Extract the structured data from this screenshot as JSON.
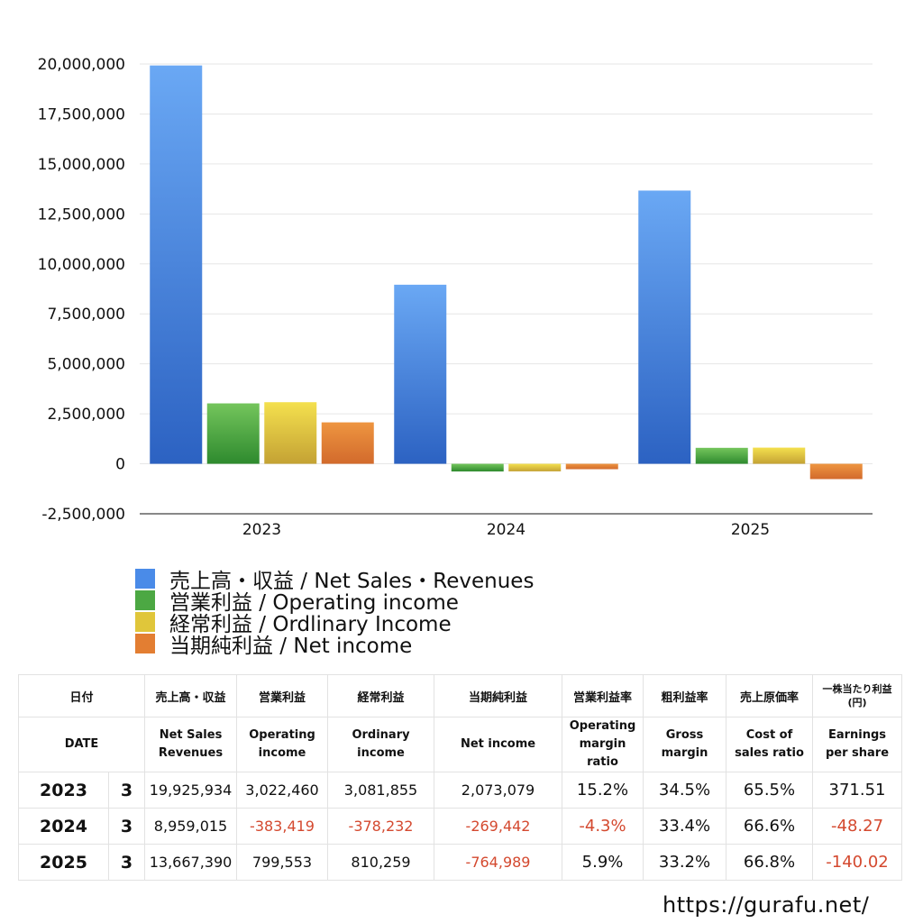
{
  "chart_data": {
    "type": "bar",
    "categories": [
      "2023",
      "2024",
      "2025"
    ],
    "series": [
      {
        "name": "売上高・収益 / Net Sales・Revenues",
        "color": "#4a8be8",
        "color_light": "#6aa8f4",
        "color_dark": "#2c62c2",
        "values": [
          19925934,
          8959015,
          13667390
        ]
      },
      {
        "name": "営業利益 / Operating income",
        "color": "#4ca843",
        "color_light": "#74c55c",
        "color_dark": "#2e8a2e",
        "values": [
          3022460,
          -383419,
          799553
        ]
      },
      {
        "name": "経常利益 / Ordlinary Income",
        "color": "#e0c63a",
        "color_light": "#f4e04e",
        "color_dark": "#c4a234",
        "values": [
          3081855,
          -378232,
          810259
        ]
      },
      {
        "name": "当期純利益 / Net income",
        "color": "#e37e32",
        "color_light": "#ee9540",
        "color_dark": "#d26a2c",
        "values": [
          2073079,
          -269442,
          -764989
        ]
      }
    ],
    "ylim": [
      -2500000,
      20000000
    ],
    "yticks": [
      20000000,
      17500000,
      15000000,
      12500000,
      10000000,
      7500000,
      5000000,
      2500000,
      0,
      -2500000
    ],
    "ytick_labels": [
      "20,000,000",
      "17,500,000",
      "15,000,000",
      "12,500,000",
      "10,000,000",
      "7,500,000",
      "5,000,000",
      "2,500,000",
      "0",
      "-2,500,000"
    ],
    "grid": true,
    "legend_position": "bottom-left",
    "title": "",
    "xlabel": "",
    "ylabel": ""
  },
  "table": {
    "header_jp": [
      "日付",
      "",
      "売上高・収益",
      "営業利益",
      "経常利益",
      "当期純利益",
      "営業利益率",
      "粗利益率",
      "売上原価率",
      "一株当たり利益\n(円)"
    ],
    "header_en": [
      "DATE",
      "",
      "Net Sales\nRevenues",
      "Operating\nincome",
      "Ordinary\nincome",
      "Net income",
      "Operating\nmargin\nratio",
      "Gross\nmargin",
      "Cost of\nsales ratio",
      "Earnings\nper share"
    ],
    "rows": [
      {
        "year": "2023",
        "month": "3",
        "net_sales": "19,925,934",
        "operating_income": "3,022,460",
        "ordinary_income": "3,081,855",
        "net_income": "2,073,079",
        "operating_margin": "15.2%",
        "gross_margin": "34.5%",
        "cost_ratio": "65.5%",
        "eps": "371.51"
      },
      {
        "year": "2024",
        "month": "3",
        "net_sales": "8,959,015",
        "operating_income": "-383,419",
        "ordinary_income": "-378,232",
        "net_income": "-269,442",
        "operating_margin": "-4.3%",
        "gross_margin": "33.4%",
        "cost_ratio": "66.6%",
        "eps": "-48.27"
      },
      {
        "year": "2025",
        "month": "3",
        "net_sales": "13,667,390",
        "operating_income": "799,553",
        "ordinary_income": "810,259",
        "net_income": "-764,989",
        "operating_margin": "5.9%",
        "gross_margin": "33.2%",
        "cost_ratio": "66.8%",
        "eps": "-140.02"
      }
    ]
  },
  "footer": {
    "url": "https://gurafu.net/"
  }
}
